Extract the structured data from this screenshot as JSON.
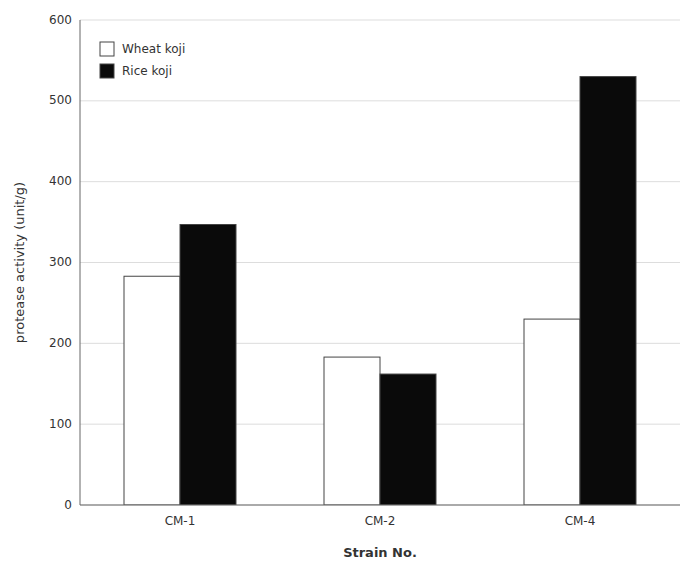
{
  "chart_data": {
    "type": "bar",
    "categories": [
      "CM-1",
      "CM-2",
      "CM-4"
    ],
    "series": [
      {
        "name": "Wheat koji",
        "color": "#ffffff",
        "values": [
          283,
          183,
          230
        ]
      },
      {
        "name": "Rice koji",
        "color": "#0a0a0a",
        "values": [
          347,
          162,
          530
        ]
      }
    ],
    "xlabel": "Strain No.",
    "ylabel": "protease activity (unit/g)",
    "ylim": [
      0,
      600
    ],
    "yticks": [
      0,
      100,
      200,
      300,
      400,
      500,
      600
    ],
    "grid": true,
    "legend": "upper left"
  }
}
